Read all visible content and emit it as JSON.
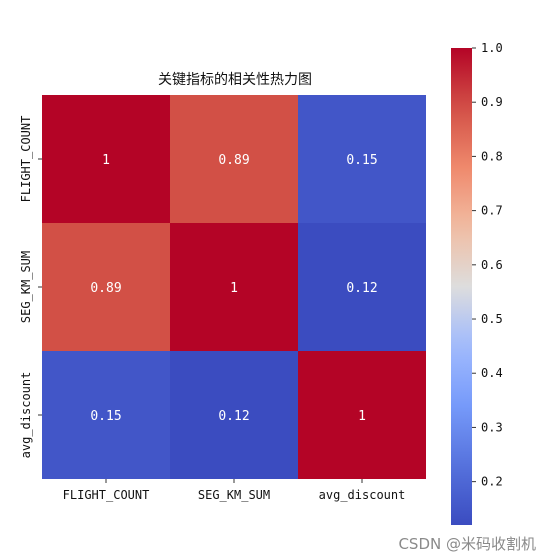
{
  "chart_data": {
    "type": "heatmap",
    "title": "关键指标的相关性热力图",
    "row_labels": [
      "FLIGHT_COUNT",
      "SEG_KM_SUM",
      "avg_discount"
    ],
    "col_labels": [
      "FLIGHT_COUNT",
      "SEG_KM_SUM",
      "avg_discount"
    ],
    "values": [
      [
        1,
        0.89,
        0.15
      ],
      [
        0.89,
        1,
        0.12
      ],
      [
        0.15,
        0.12,
        1
      ]
    ],
    "cell_labels": [
      [
        "1",
        "0.89",
        "0.15"
      ],
      [
        "0.89",
        "1",
        "0.12"
      ],
      [
        "0.15",
        "0.12",
        "1"
      ]
    ],
    "colormap": "coolwarm",
    "colorbar": {
      "range": [
        0.12,
        1.0
      ],
      "ticks": [
        0.2,
        0.3,
        0.4,
        0.5,
        0.6,
        0.7,
        0.8,
        0.9,
        1.0
      ],
      "tick_labels": [
        "0.2",
        "0.3",
        "0.4",
        "0.5",
        "0.6",
        "0.7",
        "0.8",
        "0.9",
        "1.0"
      ]
    }
  },
  "watermark": "CSDN @米码收割机"
}
